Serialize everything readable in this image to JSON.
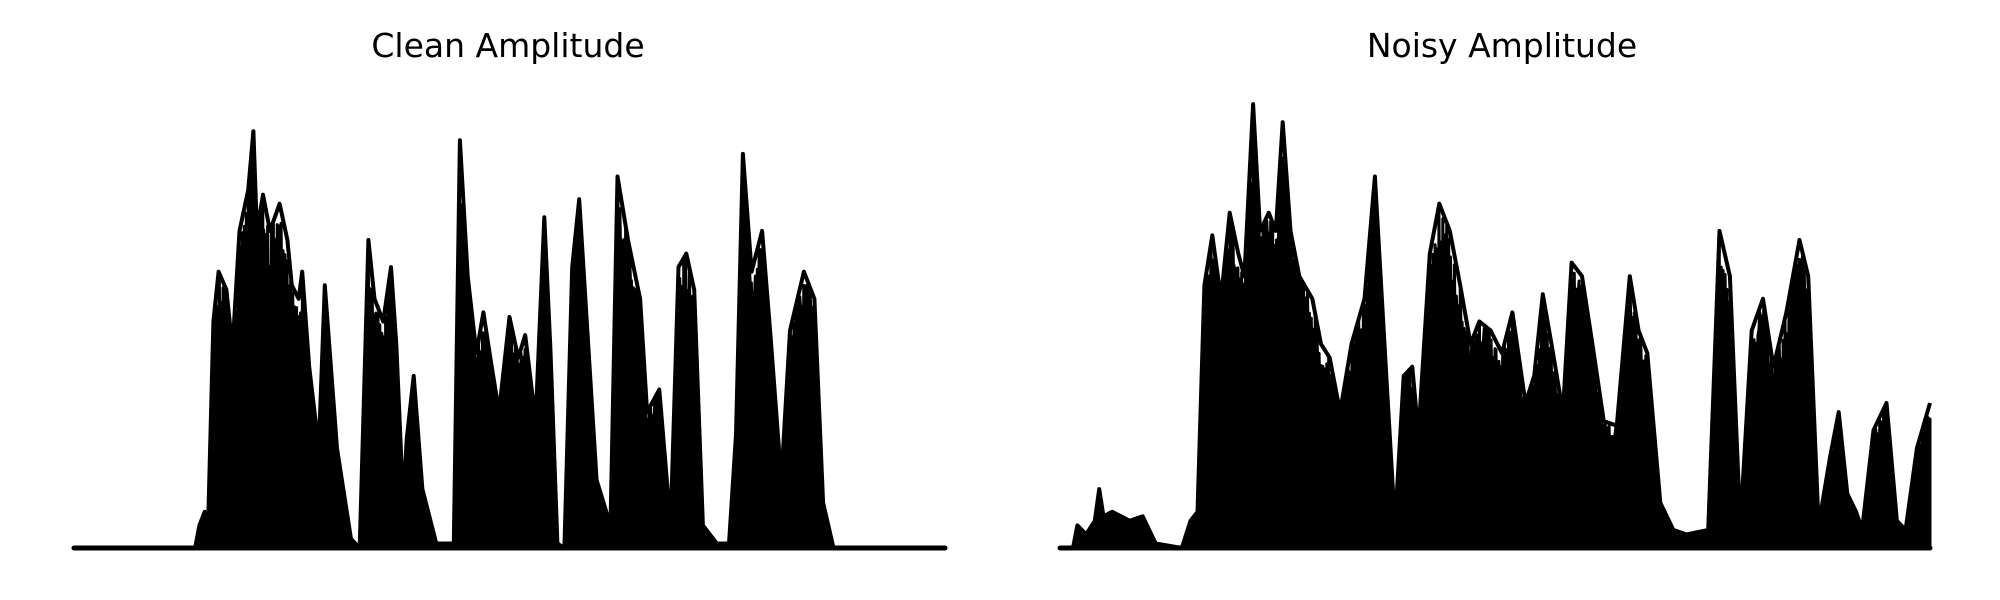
{
  "chart_data": [
    {
      "type": "area",
      "title": "Clean Amplitude",
      "xlabel": "",
      "ylabel": "",
      "axes_visible": false,
      "grid": false,
      "color": "#000000",
      "ylim": [
        0,
        1.0
      ],
      "x_range": [
        0,
        1
      ],
      "envelope": [
        [
          0.0,
          0.0
        ],
        [
          0.139,
          0.0
        ],
        [
          0.144,
          0.05
        ],
        [
          0.15,
          0.08
        ],
        [
          0.154,
          0.05
        ],
        [
          0.16,
          0.5
        ],
        [
          0.166,
          0.61
        ],
        [
          0.175,
          0.57
        ],
        [
          0.182,
          0.44
        ],
        [
          0.19,
          0.7
        ],
        [
          0.2,
          0.79
        ],
        [
          0.206,
          0.92
        ],
        [
          0.21,
          0.7
        ],
        [
          0.217,
          0.78
        ],
        [
          0.225,
          0.7
        ],
        [
          0.236,
          0.76
        ],
        [
          0.245,
          0.68
        ],
        [
          0.25,
          0.58
        ],
        [
          0.258,
          0.55
        ],
        [
          0.262,
          0.61
        ],
        [
          0.27,
          0.4
        ],
        [
          0.281,
          0.22
        ],
        [
          0.288,
          0.58
        ],
        [
          0.295,
          0.4
        ],
        [
          0.302,
          0.22
        ],
        [
          0.318,
          0.02
        ],
        [
          0.328,
          0.0
        ],
        [
          0.338,
          0.68
        ],
        [
          0.345,
          0.55
        ],
        [
          0.355,
          0.5
        ],
        [
          0.364,
          0.62
        ],
        [
          0.37,
          0.45
        ],
        [
          0.378,
          0.1
        ],
        [
          0.382,
          0.24
        ],
        [
          0.39,
          0.38
        ],
        [
          0.4,
          0.13
        ],
        [
          0.416,
          0.01
        ],
        [
          0.436,
          0.01
        ],
        [
          0.443,
          0.9
        ],
        [
          0.452,
          0.6
        ],
        [
          0.462,
          0.43
        ],
        [
          0.47,
          0.52
        ],
        [
          0.478,
          0.42
        ],
        [
          0.488,
          0.3
        ],
        [
          0.5,
          0.51
        ],
        [
          0.51,
          0.42
        ],
        [
          0.518,
          0.47
        ],
        [
          0.53,
          0.28
        ],
        [
          0.54,
          0.73
        ],
        [
          0.547,
          0.44
        ],
        [
          0.555,
          0.01
        ],
        [
          0.563,
          0.0
        ],
        [
          0.572,
          0.62
        ],
        [
          0.58,
          0.77
        ],
        [
          0.59,
          0.46
        ],
        [
          0.6,
          0.15
        ],
        [
          0.616,
          0.05
        ],
        [
          0.624,
          0.82
        ],
        [
          0.636,
          0.68
        ],
        [
          0.65,
          0.55
        ],
        [
          0.658,
          0.3
        ],
        [
          0.672,
          0.35
        ],
        [
          0.685,
          0.05
        ],
        [
          0.694,
          0.62
        ],
        [
          0.703,
          0.65
        ],
        [
          0.712,
          0.57
        ],
        [
          0.722,
          0.05
        ],
        [
          0.738,
          0.01
        ],
        [
          0.752,
          0.01
        ],
        [
          0.76,
          0.25
        ],
        [
          0.768,
          0.87
        ],
        [
          0.778,
          0.61
        ],
        [
          0.79,
          0.7
        ],
        [
          0.8,
          0.46
        ],
        [
          0.812,
          0.15
        ],
        [
          0.822,
          0.48
        ],
        [
          0.838,
          0.61
        ],
        [
          0.85,
          0.55
        ],
        [
          0.86,
          0.1
        ],
        [
          0.872,
          0.0
        ],
        [
          1.0,
          0.0
        ]
      ]
    },
    {
      "type": "area",
      "title": "Noisy Amplitude",
      "xlabel": "",
      "ylabel": "",
      "axes_visible": false,
      "grid": false,
      "color": "#000000",
      "ylim": [
        0,
        1.0
      ],
      "x_range": [
        0,
        1
      ],
      "envelope": [
        [
          0.0,
          0.0
        ],
        [
          0.015,
          0.0
        ],
        [
          0.02,
          0.05
        ],
        [
          0.03,
          0.03
        ],
        [
          0.04,
          0.06
        ],
        [
          0.045,
          0.13
        ],
        [
          0.05,
          0.07
        ],
        [
          0.06,
          0.08
        ],
        [
          0.07,
          0.07
        ],
        [
          0.08,
          0.06
        ],
        [
          0.095,
          0.07
        ],
        [
          0.11,
          0.01
        ],
        [
          0.14,
          0.0
        ],
        [
          0.15,
          0.06
        ],
        [
          0.158,
          0.08
        ],
        [
          0.166,
          0.58
        ],
        [
          0.175,
          0.69
        ],
        [
          0.185,
          0.55
        ],
        [
          0.195,
          0.74
        ],
        [
          0.205,
          0.65
        ],
        [
          0.212,
          0.6
        ],
        [
          0.222,
          0.98
        ],
        [
          0.23,
          0.7
        ],
        [
          0.24,
          0.74
        ],
        [
          0.248,
          0.7
        ],
        [
          0.256,
          0.94
        ],
        [
          0.265,
          0.7
        ],
        [
          0.275,
          0.6
        ],
        [
          0.29,
          0.55
        ],
        [
          0.3,
          0.45
        ],
        [
          0.31,
          0.42
        ],
        [
          0.322,
          0.3
        ],
        [
          0.335,
          0.45
        ],
        [
          0.35,
          0.55
        ],
        [
          0.362,
          0.82
        ],
        [
          0.375,
          0.38
        ],
        [
          0.385,
          0.05
        ],
        [
          0.395,
          0.38
        ],
        [
          0.405,
          0.4
        ],
        [
          0.412,
          0.25
        ],
        [
          0.425,
          0.65
        ],
        [
          0.436,
          0.76
        ],
        [
          0.448,
          0.7
        ],
        [
          0.46,
          0.58
        ],
        [
          0.472,
          0.45
        ],
        [
          0.482,
          0.5
        ],
        [
          0.495,
          0.48
        ],
        [
          0.508,
          0.43
        ],
        [
          0.52,
          0.52
        ],
        [
          0.535,
          0.32
        ],
        [
          0.545,
          0.38
        ],
        [
          0.555,
          0.56
        ],
        [
          0.565,
          0.45
        ],
        [
          0.578,
          0.3
        ],
        [
          0.588,
          0.63
        ],
        [
          0.6,
          0.6
        ],
        [
          0.612,
          0.45
        ],
        [
          0.625,
          0.28
        ],
        [
          0.64,
          0.27
        ],
        [
          0.655,
          0.6
        ],
        [
          0.665,
          0.48
        ],
        [
          0.675,
          0.43
        ],
        [
          0.69,
          0.1
        ],
        [
          0.705,
          0.04
        ],
        [
          0.72,
          0.03
        ],
        [
          0.745,
          0.04
        ],
        [
          0.758,
          0.7
        ],
        [
          0.77,
          0.6
        ],
        [
          0.782,
          0.05
        ],
        [
          0.795,
          0.48
        ],
        [
          0.808,
          0.55
        ],
        [
          0.82,
          0.4
        ],
        [
          0.835,
          0.52
        ],
        [
          0.85,
          0.68
        ],
        [
          0.86,
          0.6
        ],
        [
          0.872,
          0.05
        ],
        [
          0.885,
          0.2
        ],
        [
          0.895,
          0.3
        ],
        [
          0.905,
          0.12
        ],
        [
          0.915,
          0.08
        ],
        [
          0.922,
          0.04
        ],
        [
          0.935,
          0.26
        ],
        [
          0.95,
          0.32
        ],
        [
          0.962,
          0.06
        ],
        [
          0.972,
          0.04
        ],
        [
          0.985,
          0.22
        ],
        [
          1.0,
          0.32
        ]
      ]
    }
  ]
}
